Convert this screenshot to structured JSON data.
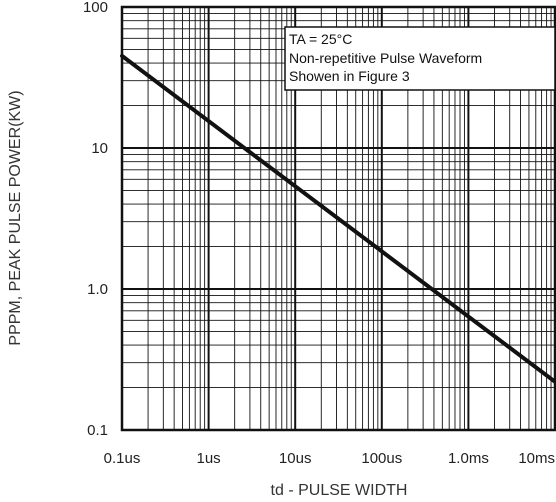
{
  "chart_data": {
    "type": "line",
    "x_scale": "log",
    "y_scale": "log",
    "xlim": [
      1e-07,
      0.01
    ],
    "ylim": [
      0.1,
      100
    ],
    "grid": true,
    "x_tick_values": [
      1e-07,
      1e-06,
      1e-05,
      0.0001,
      0.001,
      0.01
    ],
    "x_tick_labels": [
      "0.1us",
      "1us",
      "10us",
      "100us",
      "1.0ms",
      "10ms"
    ],
    "y_tick_values": [
      100,
      10,
      1,
      0.1
    ],
    "y_tick_labels": [
      "100",
      "10",
      "1.0",
      "0.1"
    ],
    "xlabel": "td - PULSE WIDTH",
    "ylabel": "PPPM, PEAK PULSE POWER(KW)",
    "annotation": [
      "TA = 25°C",
      "Non-repetitive Pulse Waveform",
      "Showen in Figure 3"
    ],
    "series": [
      {
        "x": [
          1e-07,
          0.01
        ],
        "y": [
          45,
          0.22
        ]
      }
    ]
  }
}
